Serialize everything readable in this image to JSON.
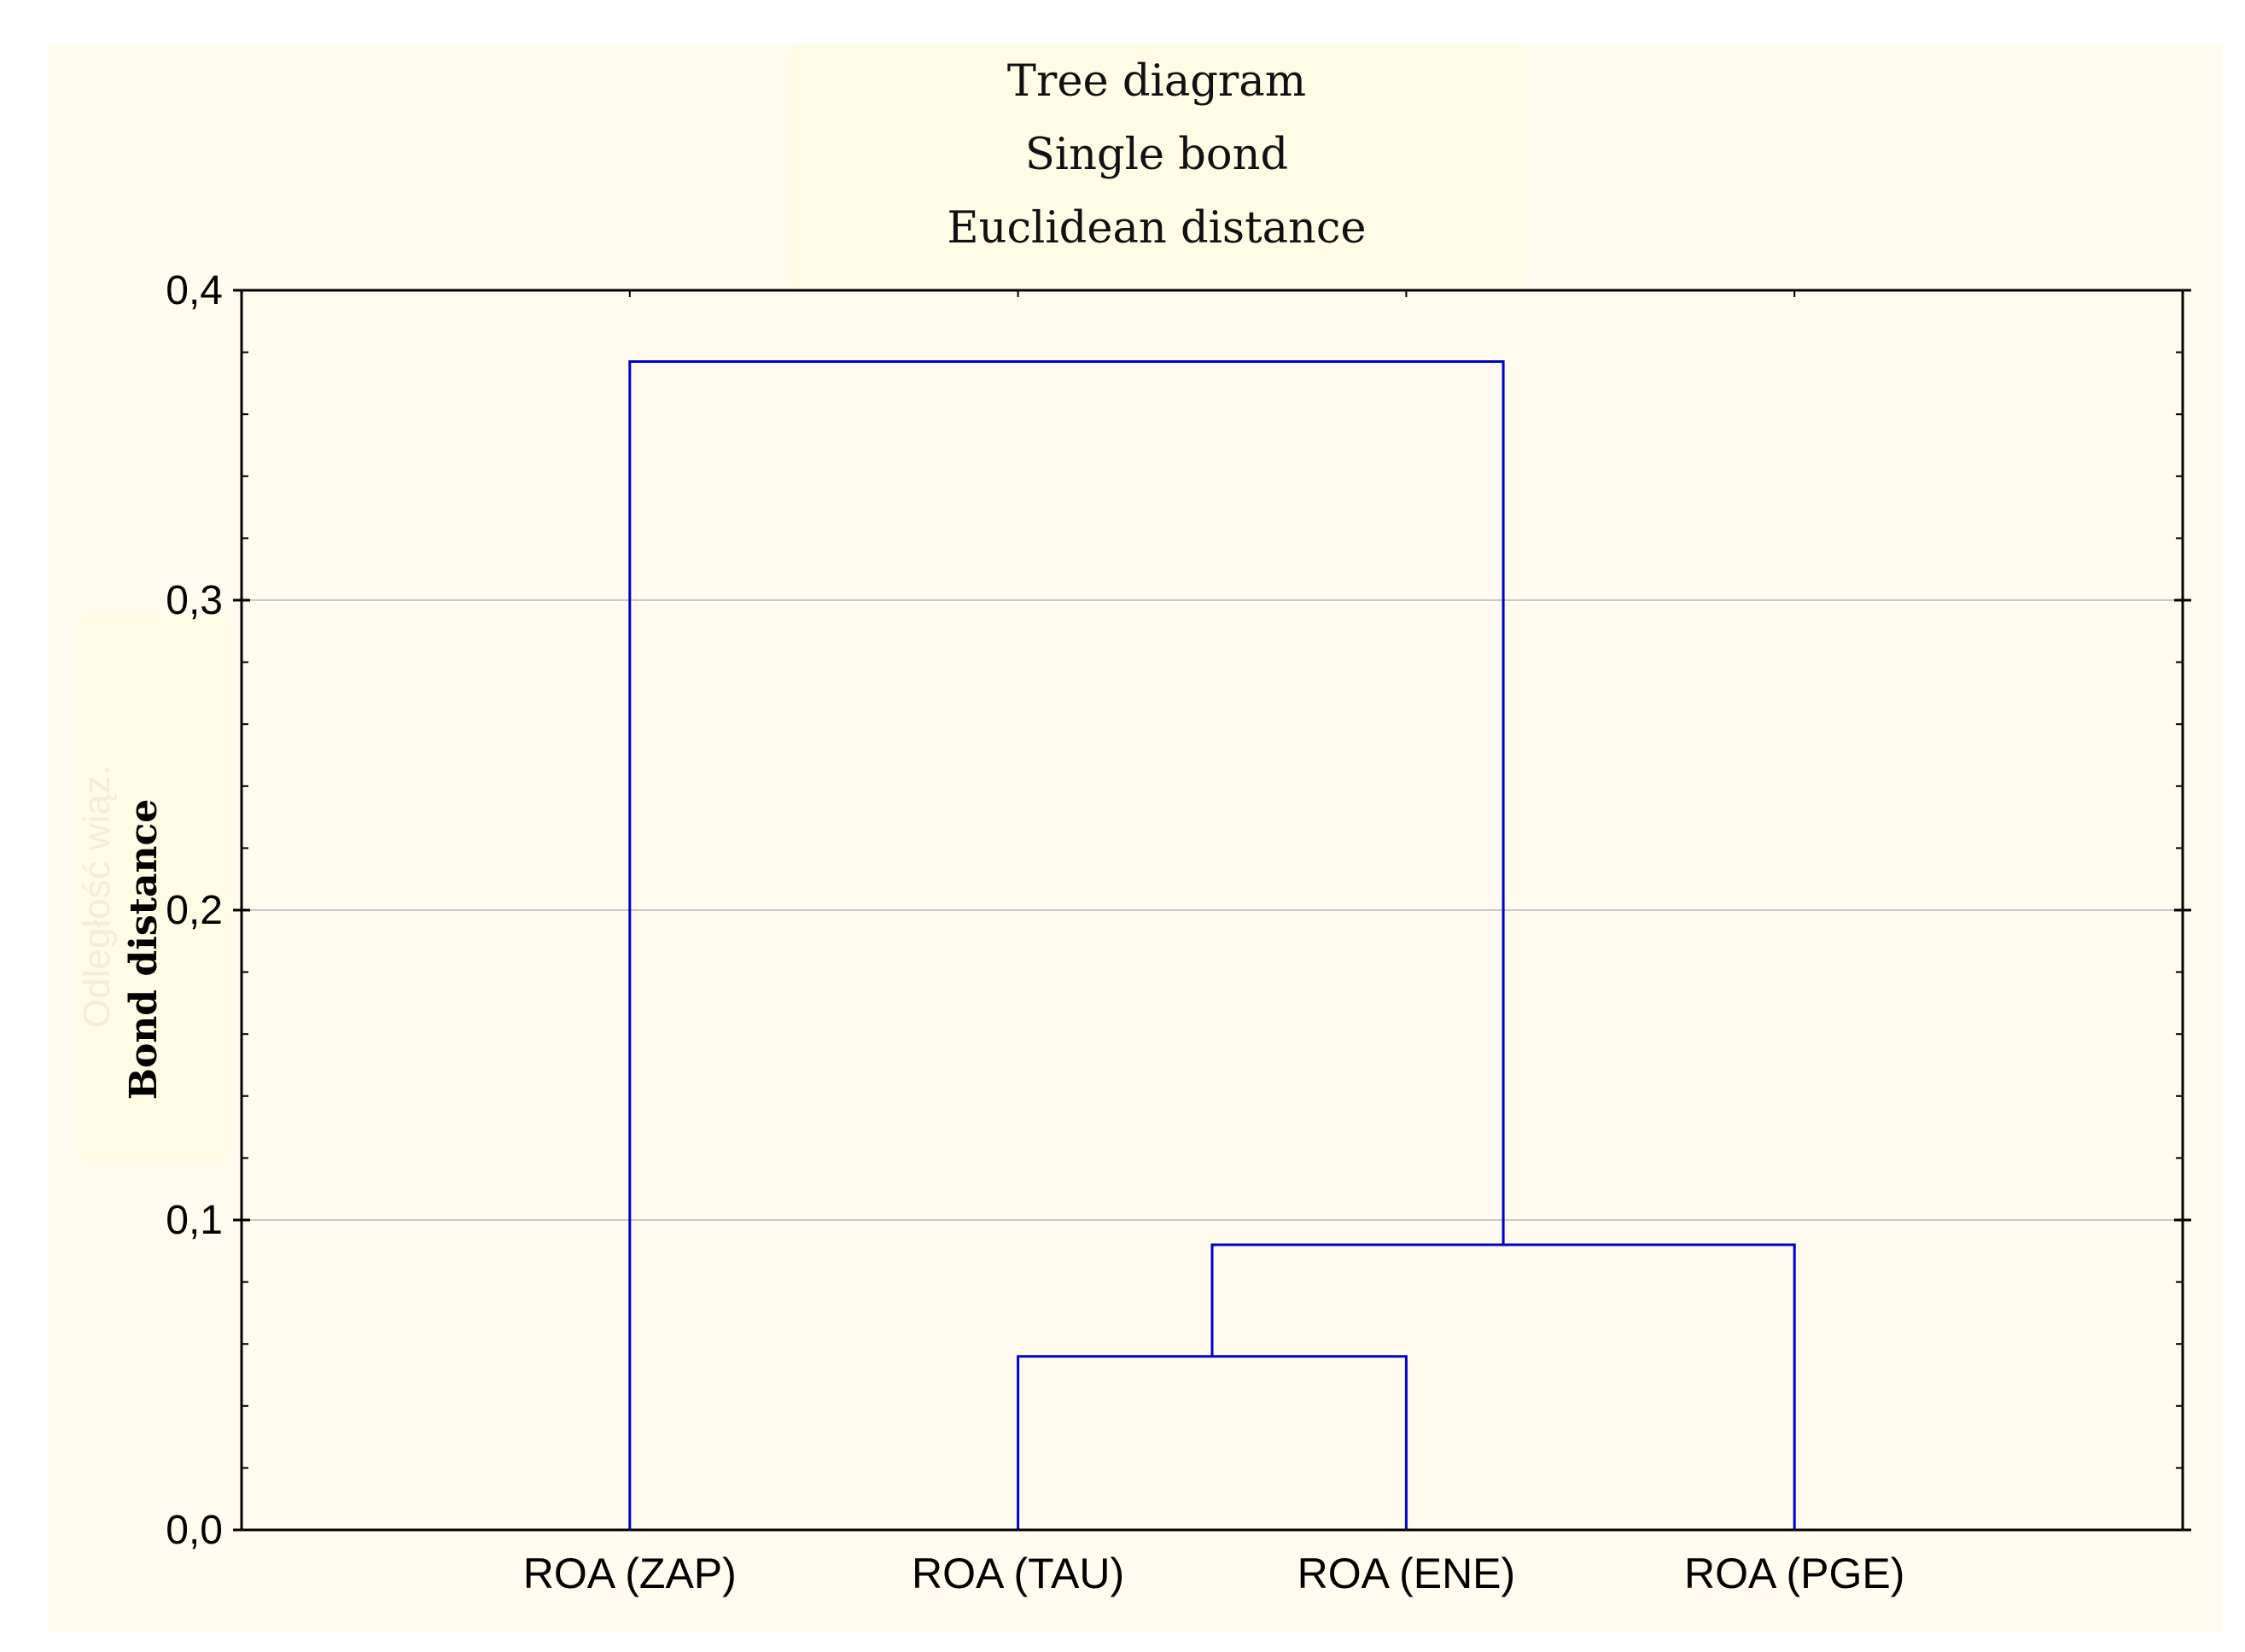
{
  "chart_data": {
    "type": "dendrogram",
    "title_lines": [
      "Tree diagram",
      "Single bond",
      "Euclidean distance"
    ],
    "ylabel": "Bond distance",
    "ylabel_secondary": "Odległość wiąz.",
    "xlabel": "",
    "ylim": [
      0,
      0.4
    ],
    "yticks": [
      "0,0",
      "0,1",
      "0,2",
      "0,3",
      "0,4"
    ],
    "ytick_values": [
      0,
      0.1,
      0.2,
      0.3,
      0.4
    ],
    "categories": [
      "ROA (ZAP)",
      "ROA (TAU)",
      "ROA (ENE)",
      "ROA (PGE)"
    ],
    "merges": [
      {
        "left": [
          "ROA (TAU)"
        ],
        "right": [
          "ROA (ENE)"
        ],
        "height": 0.056
      },
      {
        "left": [
          "ROA (TAU)",
          "ROA (ENE)"
        ],
        "right": [
          "ROA (PGE)"
        ],
        "height": 0.092
      },
      {
        "left": [
          "ROA (ZAP)"
        ],
        "right": [
          "ROA (TAU)",
          "ROA (ENE)",
          "ROA (PGE)"
        ],
        "height": 0.377
      }
    ],
    "grid": true,
    "line_color": "#0000cc",
    "grid_color": "#c8c8c8"
  }
}
